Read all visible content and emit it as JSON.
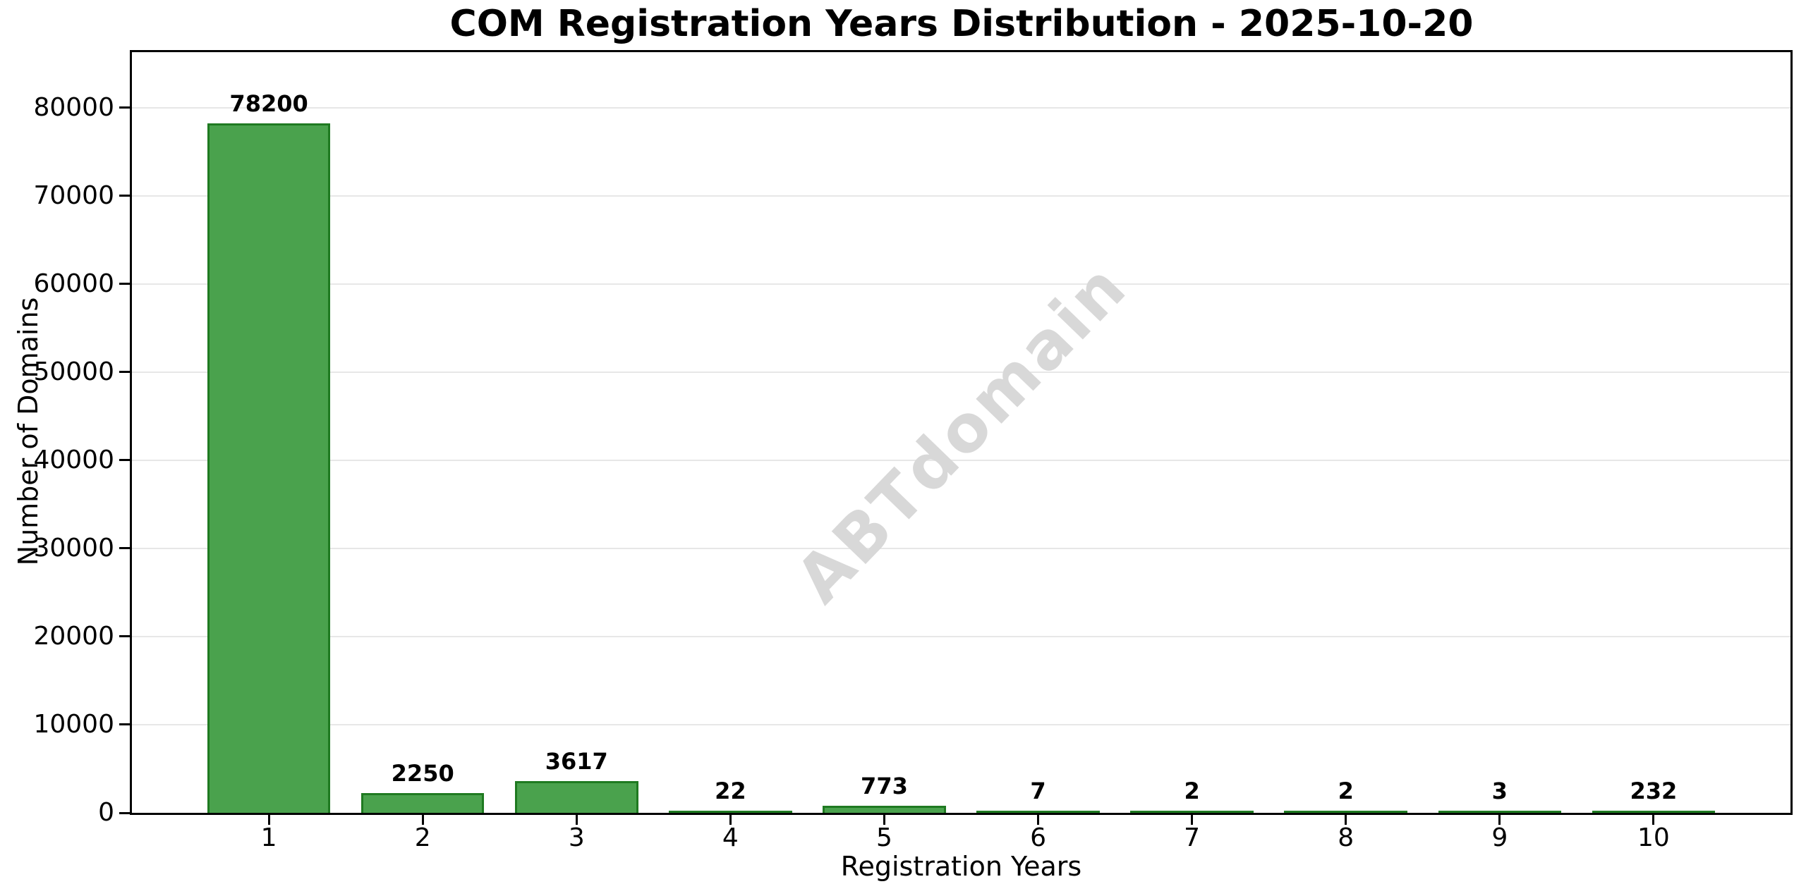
{
  "chart_data": {
    "type": "bar",
    "title": "COM Registration Years Distribution - 2025-10-20",
    "xlabel": "Registration Years",
    "ylabel": "Number of Domains",
    "categories": [
      "1",
      "2",
      "3",
      "4",
      "5",
      "6",
      "7",
      "8",
      "9",
      "10"
    ],
    "values": [
      78200,
      2250,
      3617,
      22,
      773,
      7,
      2,
      2,
      3,
      232
    ],
    "bar_value_labels": [
      "78200",
      "2250",
      "3617",
      "22",
      "773",
      "7",
      "2",
      "2",
      "3",
      "232"
    ],
    "yticks": [
      0,
      10000,
      20000,
      30000,
      40000,
      50000,
      60000,
      70000,
      80000
    ],
    "ytick_labels": [
      "0",
      "10000",
      "20000",
      "30000",
      "40000",
      "50000",
      "60000",
      "70000",
      "80000"
    ],
    "ylim": [
      0,
      86300
    ],
    "xlim": [
      0.11,
      10.89
    ],
    "bar_width_units": 0.8,
    "grid": "horizontal",
    "legend": "none",
    "watermark": "ABTdomain",
    "colors": {
      "bar_fill": "#4AA24D",
      "bar_edge": "#1F7A21",
      "grid_line": "#E7E7E7",
      "axis_line": "#000000",
      "text": "#000000",
      "watermark": "#D8D8D8",
      "background": "#FFFFFF"
    }
  }
}
